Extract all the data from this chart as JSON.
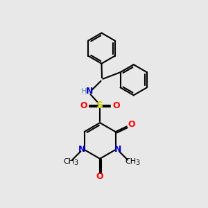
{
  "bg_color": "#e8e8e8",
  "bond_color": "#000000",
  "bond_width": 1.5,
  "atom_colors": {
    "N": "#0000cc",
    "O": "#ff0000",
    "S": "#cccc00",
    "H": "#5f9ea0",
    "C": "#000000"
  },
  "font_size": 9,
  "font_size_small": 8
}
